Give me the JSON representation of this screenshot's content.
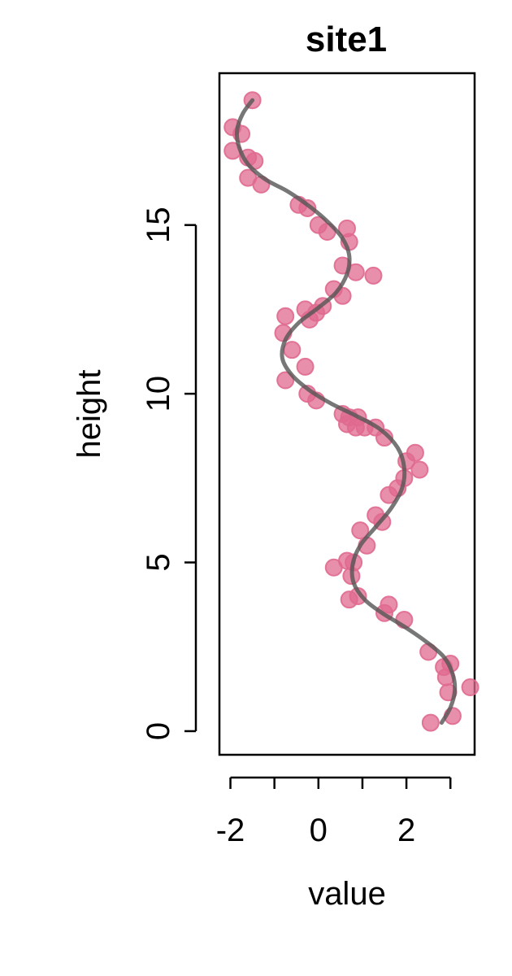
{
  "chart_data": {
    "type": "scatter",
    "title": "site1",
    "xlabel": "value",
    "ylabel": "height",
    "xlim": [
      -2.25,
      3.55
    ],
    "ylim": [
      -0.7,
      19.5
    ],
    "x_ticks": [
      -2,
      -1,
      0,
      1,
      2,
      3
    ],
    "x_tick_labels": [
      {
        "value": -2,
        "label": "-2"
      },
      {
        "value": 0,
        "label": "0"
      },
      {
        "value": 2,
        "label": "2"
      }
    ],
    "y_ticks": [
      {
        "value": 0,
        "label": "0"
      },
      {
        "value": 5,
        "label": "5"
      },
      {
        "value": 10,
        "label": "10"
      },
      {
        "value": 15,
        "label": "15"
      }
    ],
    "grid": false,
    "point_color": "#E06A8F",
    "line_color": "#555555",
    "points": [
      {
        "x": -1.5,
        "y": 18.7
      },
      {
        "x": -1.95,
        "y": 17.9
      },
      {
        "x": -1.75,
        "y": 17.7
      },
      {
        "x": -1.95,
        "y": 17.2
      },
      {
        "x": -1.6,
        "y": 17.0
      },
      {
        "x": -1.45,
        "y": 16.9
      },
      {
        "x": -1.6,
        "y": 16.4
      },
      {
        "x": -1.3,
        "y": 16.2
      },
      {
        "x": -0.45,
        "y": 15.6
      },
      {
        "x": -0.25,
        "y": 15.5
      },
      {
        "x": 0.0,
        "y": 15.0
      },
      {
        "x": 0.2,
        "y": 14.8
      },
      {
        "x": 0.65,
        "y": 14.9
      },
      {
        "x": 0.7,
        "y": 14.5
      },
      {
        "x": 0.55,
        "y": 13.8
      },
      {
        "x": 0.85,
        "y": 13.6
      },
      {
        "x": 1.25,
        "y": 13.5
      },
      {
        "x": 0.35,
        "y": 13.1
      },
      {
        "x": 0.55,
        "y": 12.9
      },
      {
        "x": 0.1,
        "y": 12.6
      },
      {
        "x": -0.3,
        "y": 12.5
      },
      {
        "x": -0.05,
        "y": 12.4
      },
      {
        "x": -0.2,
        "y": 12.2
      },
      {
        "x": -0.75,
        "y": 12.3
      },
      {
        "x": -0.8,
        "y": 11.8
      },
      {
        "x": -0.6,
        "y": 11.3
      },
      {
        "x": -0.3,
        "y": 10.8
      },
      {
        "x": -0.75,
        "y": 10.4
      },
      {
        "x": -0.25,
        "y": 10.0
      },
      {
        "x": -0.05,
        "y": 9.8
      },
      {
        "x": 0.55,
        "y": 9.4
      },
      {
        "x": 0.7,
        "y": 9.3
      },
      {
        "x": 0.9,
        "y": 9.3
      },
      {
        "x": 0.65,
        "y": 9.1
      },
      {
        "x": 0.85,
        "y": 9.0
      },
      {
        "x": 1.05,
        "y": 9.0
      },
      {
        "x": 1.3,
        "y": 9.0
      },
      {
        "x": 1.5,
        "y": 8.7
      },
      {
        "x": 2.2,
        "y": 8.25
      },
      {
        "x": 2.0,
        "y": 8.0
      },
      {
        "x": 2.3,
        "y": 7.75
      },
      {
        "x": 1.95,
        "y": 7.5
      },
      {
        "x": 1.8,
        "y": 7.2
      },
      {
        "x": 1.6,
        "y": 7.0
      },
      {
        "x": 1.3,
        "y": 6.4
      },
      {
        "x": 1.45,
        "y": 6.2
      },
      {
        "x": 0.95,
        "y": 5.95
      },
      {
        "x": 1.1,
        "y": 5.5
      },
      {
        "x": 0.8,
        "y": 5.0
      },
      {
        "x": 0.65,
        "y": 5.05
      },
      {
        "x": 0.35,
        "y": 4.85
      },
      {
        "x": 0.75,
        "y": 4.6
      },
      {
        "x": 0.7,
        "y": 3.9
      },
      {
        "x": 0.9,
        "y": 4.0
      },
      {
        "x": 1.6,
        "y": 3.75
      },
      {
        "x": 1.5,
        "y": 3.5
      },
      {
        "x": 1.95,
        "y": 3.3
      },
      {
        "x": 2.5,
        "y": 2.35
      },
      {
        "x": 3.0,
        "y": 2.0
      },
      {
        "x": 2.85,
        "y": 1.9
      },
      {
        "x": 2.9,
        "y": 1.6
      },
      {
        "x": 2.95,
        "y": 1.15
      },
      {
        "x": 3.45,
        "y": 1.3
      },
      {
        "x": 3.05,
        "y": 0.45
      },
      {
        "x": 2.55,
        "y": 0.25
      }
    ],
    "smooth_line": [
      {
        "x": -1.5,
        "y": 18.7
      },
      {
        "x": -1.72,
        "y": 18.3
      },
      {
        "x": -1.85,
        "y": 17.8
      },
      {
        "x": -1.8,
        "y": 17.3
      },
      {
        "x": -1.6,
        "y": 16.8
      },
      {
        "x": -1.2,
        "y": 16.35
      },
      {
        "x": -0.7,
        "y": 16.0
      },
      {
        "x": -0.2,
        "y": 15.55
      },
      {
        "x": 0.25,
        "y": 15.05
      },
      {
        "x": 0.55,
        "y": 14.6
      },
      {
        "x": 0.7,
        "y": 14.1
      },
      {
        "x": 0.65,
        "y": 13.55
      },
      {
        "x": 0.4,
        "y": 13.0
      },
      {
        "x": 0.0,
        "y": 12.55
      },
      {
        "x": -0.45,
        "y": 12.1
      },
      {
        "x": -0.75,
        "y": 11.6
      },
      {
        "x": -0.82,
        "y": 11.05
      },
      {
        "x": -0.6,
        "y": 10.55
      },
      {
        "x": -0.2,
        "y": 10.1
      },
      {
        "x": 0.3,
        "y": 9.7
      },
      {
        "x": 0.85,
        "y": 9.35
      },
      {
        "x": 1.4,
        "y": 8.95
      },
      {
        "x": 1.8,
        "y": 8.4
      },
      {
        "x": 1.95,
        "y": 7.8
      },
      {
        "x": 1.9,
        "y": 7.2
      },
      {
        "x": 1.65,
        "y": 6.6
      },
      {
        "x": 1.3,
        "y": 6.05
      },
      {
        "x": 0.95,
        "y": 5.5
      },
      {
        "x": 0.78,
        "y": 4.95
      },
      {
        "x": 0.8,
        "y": 4.4
      },
      {
        "x": 1.05,
        "y": 3.9
      },
      {
        "x": 1.45,
        "y": 3.5
      },
      {
        "x": 1.95,
        "y": 3.1
      },
      {
        "x": 2.45,
        "y": 2.65
      },
      {
        "x": 2.85,
        "y": 2.2
      },
      {
        "x": 3.05,
        "y": 1.7
      },
      {
        "x": 3.1,
        "y": 1.2
      },
      {
        "x": 3.0,
        "y": 0.7
      },
      {
        "x": 2.8,
        "y": 0.25
      }
    ]
  }
}
